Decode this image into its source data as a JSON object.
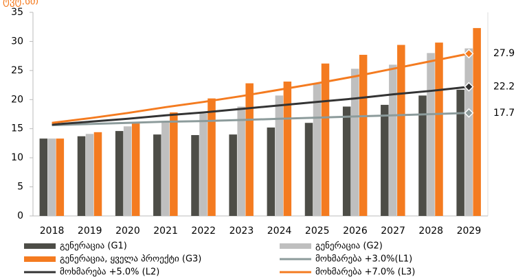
{
  "chart_data": {
    "type": "bar",
    "title": "ტვტ.სთ",
    "categories": [
      "2018",
      "2019",
      "2020",
      "2021",
      "2022",
      "2023",
      "2024",
      "2025",
      "2026",
      "2027",
      "2028",
      "2029"
    ],
    "series": [
      {
        "name": "გენერაცია (G1)",
        "color": "#4d4d47",
        "kind": "bar",
        "values": [
          13.3,
          13.7,
          14.6,
          14.0,
          13.9,
          14.0,
          15.2,
          16.0,
          18.8,
          19.1,
          20.7,
          21.7
        ]
      },
      {
        "name": "გენერაცია (G2)",
        "color": "#bfbfbf",
        "kind": "bar",
        "values": [
          13.3,
          14.1,
          15.4,
          16.2,
          17.6,
          18.8,
          20.7,
          22.7,
          25.3,
          26.0,
          28.0,
          28.8
        ]
      },
      {
        "name": "გენერაცია, ყველა პროექტი (G3)",
        "color": "#f47b20",
        "kind": "bar",
        "values": [
          13.3,
          14.4,
          15.9,
          17.8,
          20.2,
          22.8,
          23.1,
          26.2,
          27.7,
          29.4,
          29.8,
          32.3
        ]
      },
      {
        "name": "მოხმარება +3.0%(L1)",
        "color": "#8c9b9b",
        "kind": "line",
        "values": [
          15.6,
          15.8,
          16.0,
          16.2,
          16.3,
          16.5,
          16.7,
          16.9,
          17.1,
          17.3,
          17.5,
          17.7
        ]
      },
      {
        "name": "მოხმარება +5.0% (L2)",
        "color": "#333333",
        "kind": "line",
        "values": [
          15.7,
          16.2,
          16.7,
          17.3,
          17.8,
          18.4,
          19.0,
          19.6,
          20.2,
          20.9,
          21.5,
          22.2
        ]
      },
      {
        "name": "მოხმარება +7.0% (L3)",
        "color": "#f47b20",
        "kind": "line",
        "values": [
          16.0,
          16.8,
          17.7,
          18.7,
          19.6,
          20.6,
          21.7,
          22.8,
          24.0,
          25.3,
          26.6,
          27.9
        ]
      }
    ],
    "ylim": [
      0,
      35
    ],
    "yticks": [
      0,
      5,
      10,
      15,
      20,
      25,
      30,
      35
    ],
    "grid": false
  }
}
